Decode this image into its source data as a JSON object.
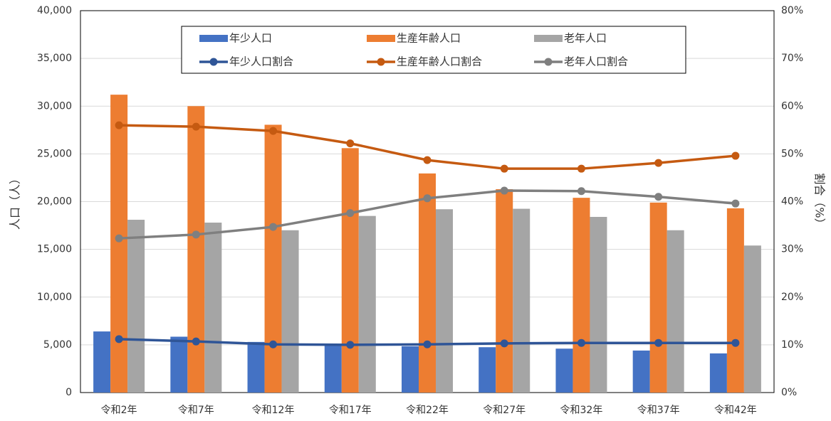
{
  "chart_data": {
    "type": "bar-line",
    "categories": [
      "令和2年",
      "令和7年",
      "令和12年",
      "令和17年",
      "令和22年",
      "令和27年",
      "令和32年",
      "令和37年",
      "令和42年"
    ],
    "y_label": "人口（人）",
    "y2_label": "割合（%）",
    "ylim": [
      0,
      40000
    ],
    "yticks": [
      0,
      {
        "value": 5000,
        "label": "5,000"
      },
      {
        "value": 10000,
        "label": "10,000"
      },
      {
        "value": 15000,
        "label": "15,000"
      },
      {
        "value": 20000,
        "label": "20,000"
      },
      {
        "value": 25000,
        "label": "25,000"
      },
      {
        "value": 30000,
        "label": "30,000"
      },
      {
        "value": 35000,
        "label": "35,000"
      },
      {
        "value": 40000,
        "label": "40,000"
      }
    ],
    "y2lim": [
      0,
      80
    ],
    "y2ticks": [
      {
        "value": 0,
        "label": "0%"
      },
      {
        "value": 10,
        "label": "10%"
      },
      {
        "value": 20,
        "label": "20%"
      },
      {
        "value": 30,
        "label": "30%"
      },
      {
        "value": 40,
        "label": "40%"
      },
      {
        "value": 50,
        "label": "50%"
      },
      {
        "value": 60,
        "label": "60%"
      },
      {
        "value": 70,
        "label": "70%"
      },
      {
        "value": 80,
        "label": "80%"
      }
    ],
    "grid": true,
    "legend": "top",
    "series": [
      {
        "name": "年少人口",
        "kind": "bar",
        "color": "#4472c4",
        "values": [
          6400,
          5850,
          5300,
          5100,
          4850,
          4750,
          4600,
          4400,
          4100
        ]
      },
      {
        "name": "生産年齢人口",
        "kind": "bar",
        "color": "#ed7d31",
        "values": [
          31200,
          30000,
          28050,
          25600,
          22950,
          21300,
          20400,
          19900,
          19300
        ]
      },
      {
        "name": "老年人口",
        "kind": "bar",
        "color": "#a5a5a5",
        "values": [
          18100,
          17800,
          17000,
          18500,
          19200,
          19250,
          18400,
          17000,
          15400
        ]
      },
      {
        "name": "年少人口割合",
        "kind": "line",
        "axis": "y2",
        "color": "#2f5597",
        "values": [
          11.2,
          10.7,
          10.1,
          10.0,
          10.1,
          10.3,
          10.4,
          10.4,
          10.4
        ]
      },
      {
        "name": "生産年齢人口割合",
        "kind": "line",
        "axis": "y2",
        "color": "#c55a11",
        "values": [
          56.0,
          55.7,
          54.8,
          52.2,
          48.7,
          46.9,
          46.9,
          48.1,
          49.6
        ]
      },
      {
        "name": "老年人口割合",
        "kind": "line",
        "axis": "y2",
        "color": "#7f7f7f",
        "values": [
          32.3,
          33.1,
          34.7,
          37.6,
          40.7,
          42.3,
          42.2,
          41.0,
          39.6
        ]
      }
    ]
  }
}
